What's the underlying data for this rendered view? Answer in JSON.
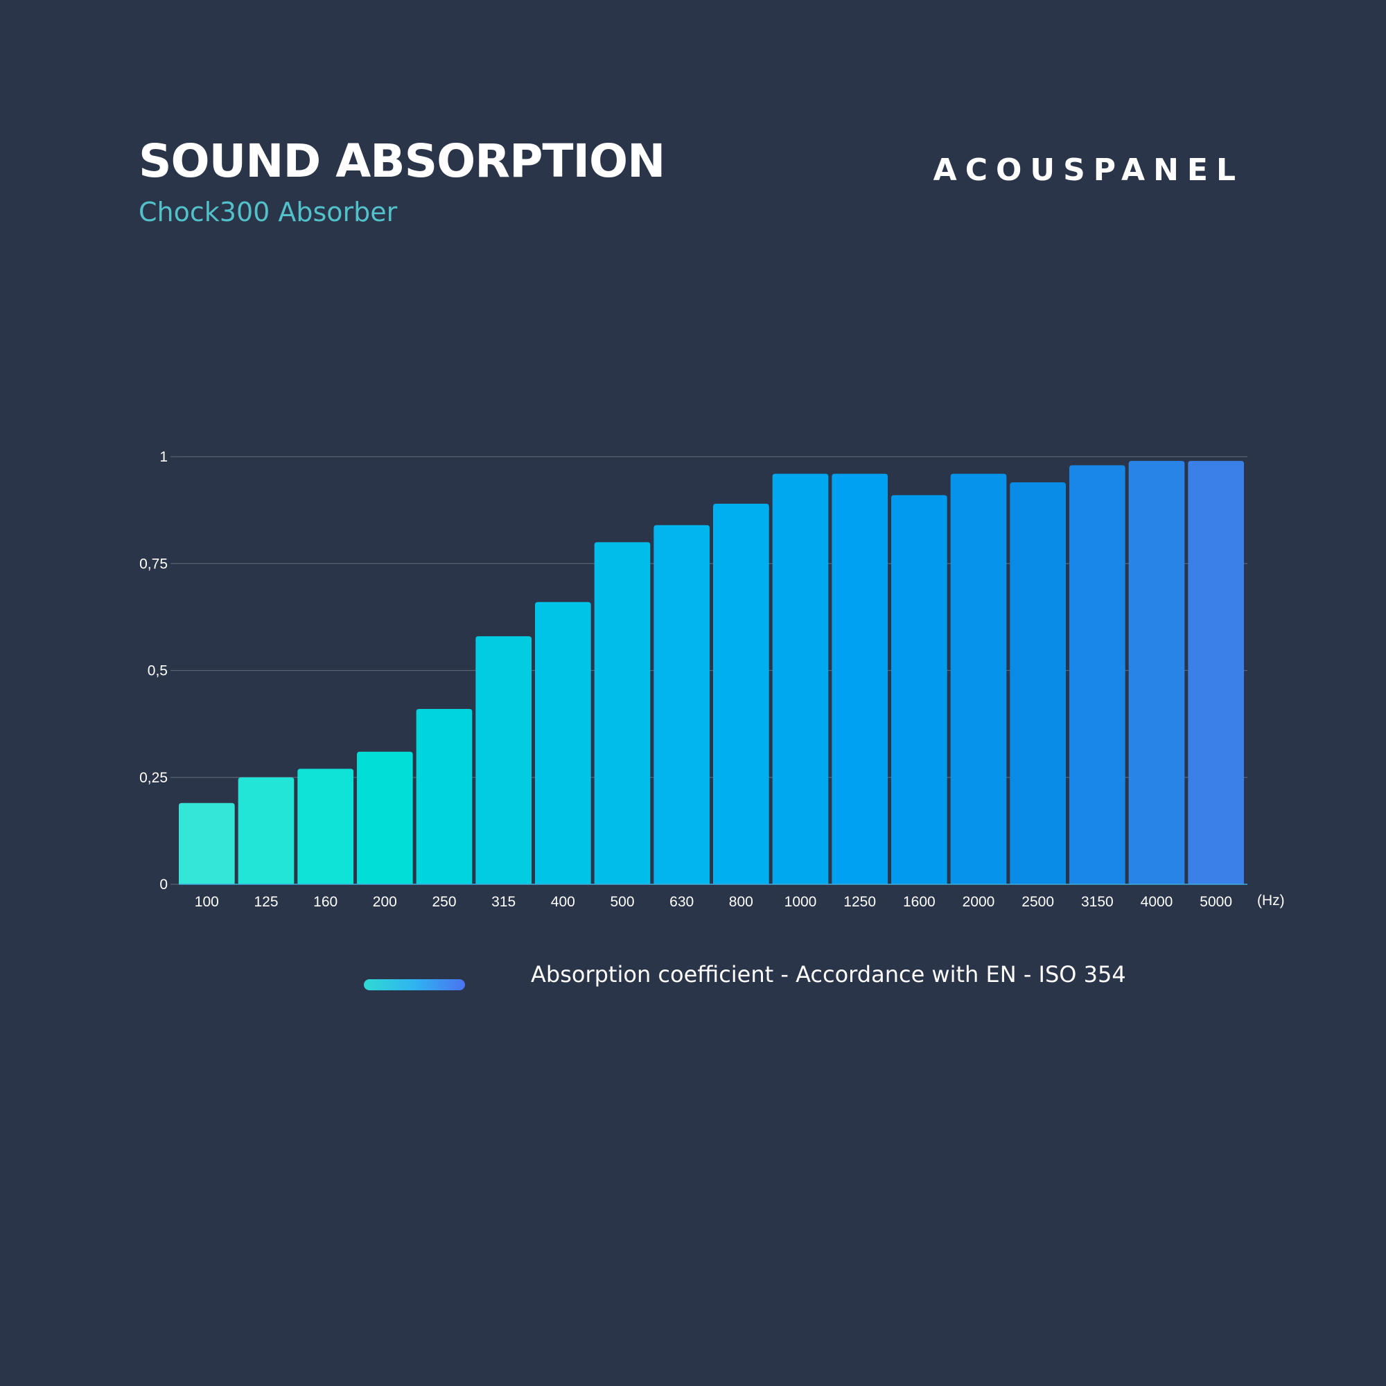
{
  "header": {
    "title": "SOUND ABSORPTION",
    "subtitle": "Chock300 Absorber",
    "brand": "ACOUSPANEL"
  },
  "legend": {
    "label": "Absorption coefficient - Accordance with EN - ISO 354"
  },
  "colors": {
    "background": "#2b3549",
    "subtitle": "#52c1c9",
    "gridline": "#5a6475",
    "bar_gradient": [
      "#34e6d8",
      "#00e0d6",
      "#00c6e6",
      "#00b2ef",
      "#009ff0",
      "#0a8ae8",
      "#3a80e8"
    ]
  },
  "chart_data": {
    "type": "bar",
    "categories": [
      "100",
      "125",
      "160",
      "200",
      "250",
      "315",
      "400",
      "500",
      "630",
      "800",
      "1000",
      "1250",
      "1600",
      "2000",
      "2500",
      "3150",
      "4000",
      "5000"
    ],
    "values": [
      0.19,
      0.25,
      0.27,
      0.31,
      0.41,
      0.58,
      0.66,
      0.8,
      0.84,
      0.89,
      0.96,
      0.96,
      0.91,
      0.96,
      0.94,
      0.98,
      0.99,
      0.99
    ],
    "title": "SOUND ABSORPTION",
    "xlabel": "(Hz)",
    "ylabel": "",
    "ylim": [
      0,
      1
    ],
    "yticks": [
      0,
      0.25,
      0.5,
      0.75,
      1
    ],
    "ytick_labels": [
      "0",
      "0,25",
      "0,5",
      "0,75",
      "1"
    ],
    "grid": true,
    "legend_position": "bottom",
    "series": [
      {
        "name": "Absorption coefficient - Accordance with EN - ISO 354",
        "values": [
          0.19,
          0.25,
          0.27,
          0.31,
          0.41,
          0.58,
          0.66,
          0.8,
          0.84,
          0.89,
          0.96,
          0.96,
          0.91,
          0.96,
          0.94,
          0.98,
          0.99,
          0.99
        ]
      }
    ]
  }
}
